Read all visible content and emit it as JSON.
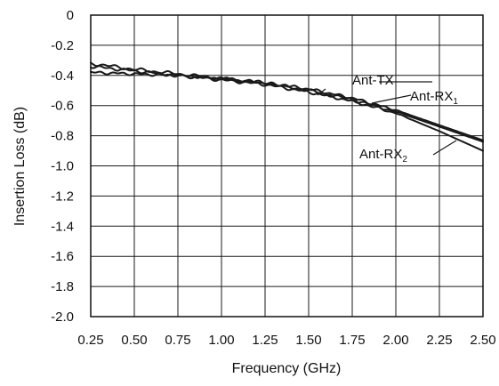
{
  "chart_data": {
    "type": "line",
    "title": "",
    "xlabel": "Frequency (GHz)",
    "ylabel": "Insertion Loss (dB)",
    "xlim": [
      0.25,
      2.5
    ],
    "ylim": [
      -2.0,
      0
    ],
    "grid": true,
    "x_ticks": [
      "0.25",
      "0.50",
      "0.75",
      "1.00",
      "1.25",
      "1.50",
      "1.75",
      "2.00",
      "2.25",
      "2.50"
    ],
    "y_ticks": [
      "0",
      "-0.2",
      "-0.4",
      "-0.6",
      "-0.8",
      "-1.0",
      "-1.2",
      "-1.4",
      "-1.6",
      "-1.8",
      "-2.0"
    ],
    "series": [
      {
        "name": "Ant-TX",
        "label_main": "Ant-TX",
        "label_sub": "",
        "x": [
          0.25,
          0.5,
          0.75,
          1.0,
          1.25,
          1.5,
          1.75,
          2.0,
          2.25,
          2.5
        ],
        "y": [
          -0.32,
          -0.36,
          -0.39,
          -0.42,
          -0.45,
          -0.5,
          -0.56,
          -0.64,
          -0.74,
          -0.84
        ]
      },
      {
        "name": "Ant-RX1",
        "label_main": "Ant-RX",
        "label_sub": "1",
        "x": [
          0.25,
          0.5,
          0.75,
          1.0,
          1.25,
          1.5,
          1.75,
          2.0,
          2.25,
          2.5
        ],
        "y": [
          -0.38,
          -0.39,
          -0.4,
          -0.42,
          -0.45,
          -0.49,
          -0.55,
          -0.63,
          -0.73,
          -0.83
        ]
      },
      {
        "name": "Ant-RX2",
        "label_main": "Ant-RX",
        "label_sub": "2",
        "x": [
          0.25,
          0.5,
          0.75,
          1.0,
          1.25,
          1.5,
          1.75,
          2.0,
          2.25,
          2.5
        ],
        "y": [
          -0.34,
          -0.37,
          -0.4,
          -0.43,
          -0.46,
          -0.51,
          -0.57,
          -0.65,
          -0.77,
          -0.9
        ]
      }
    ]
  }
}
